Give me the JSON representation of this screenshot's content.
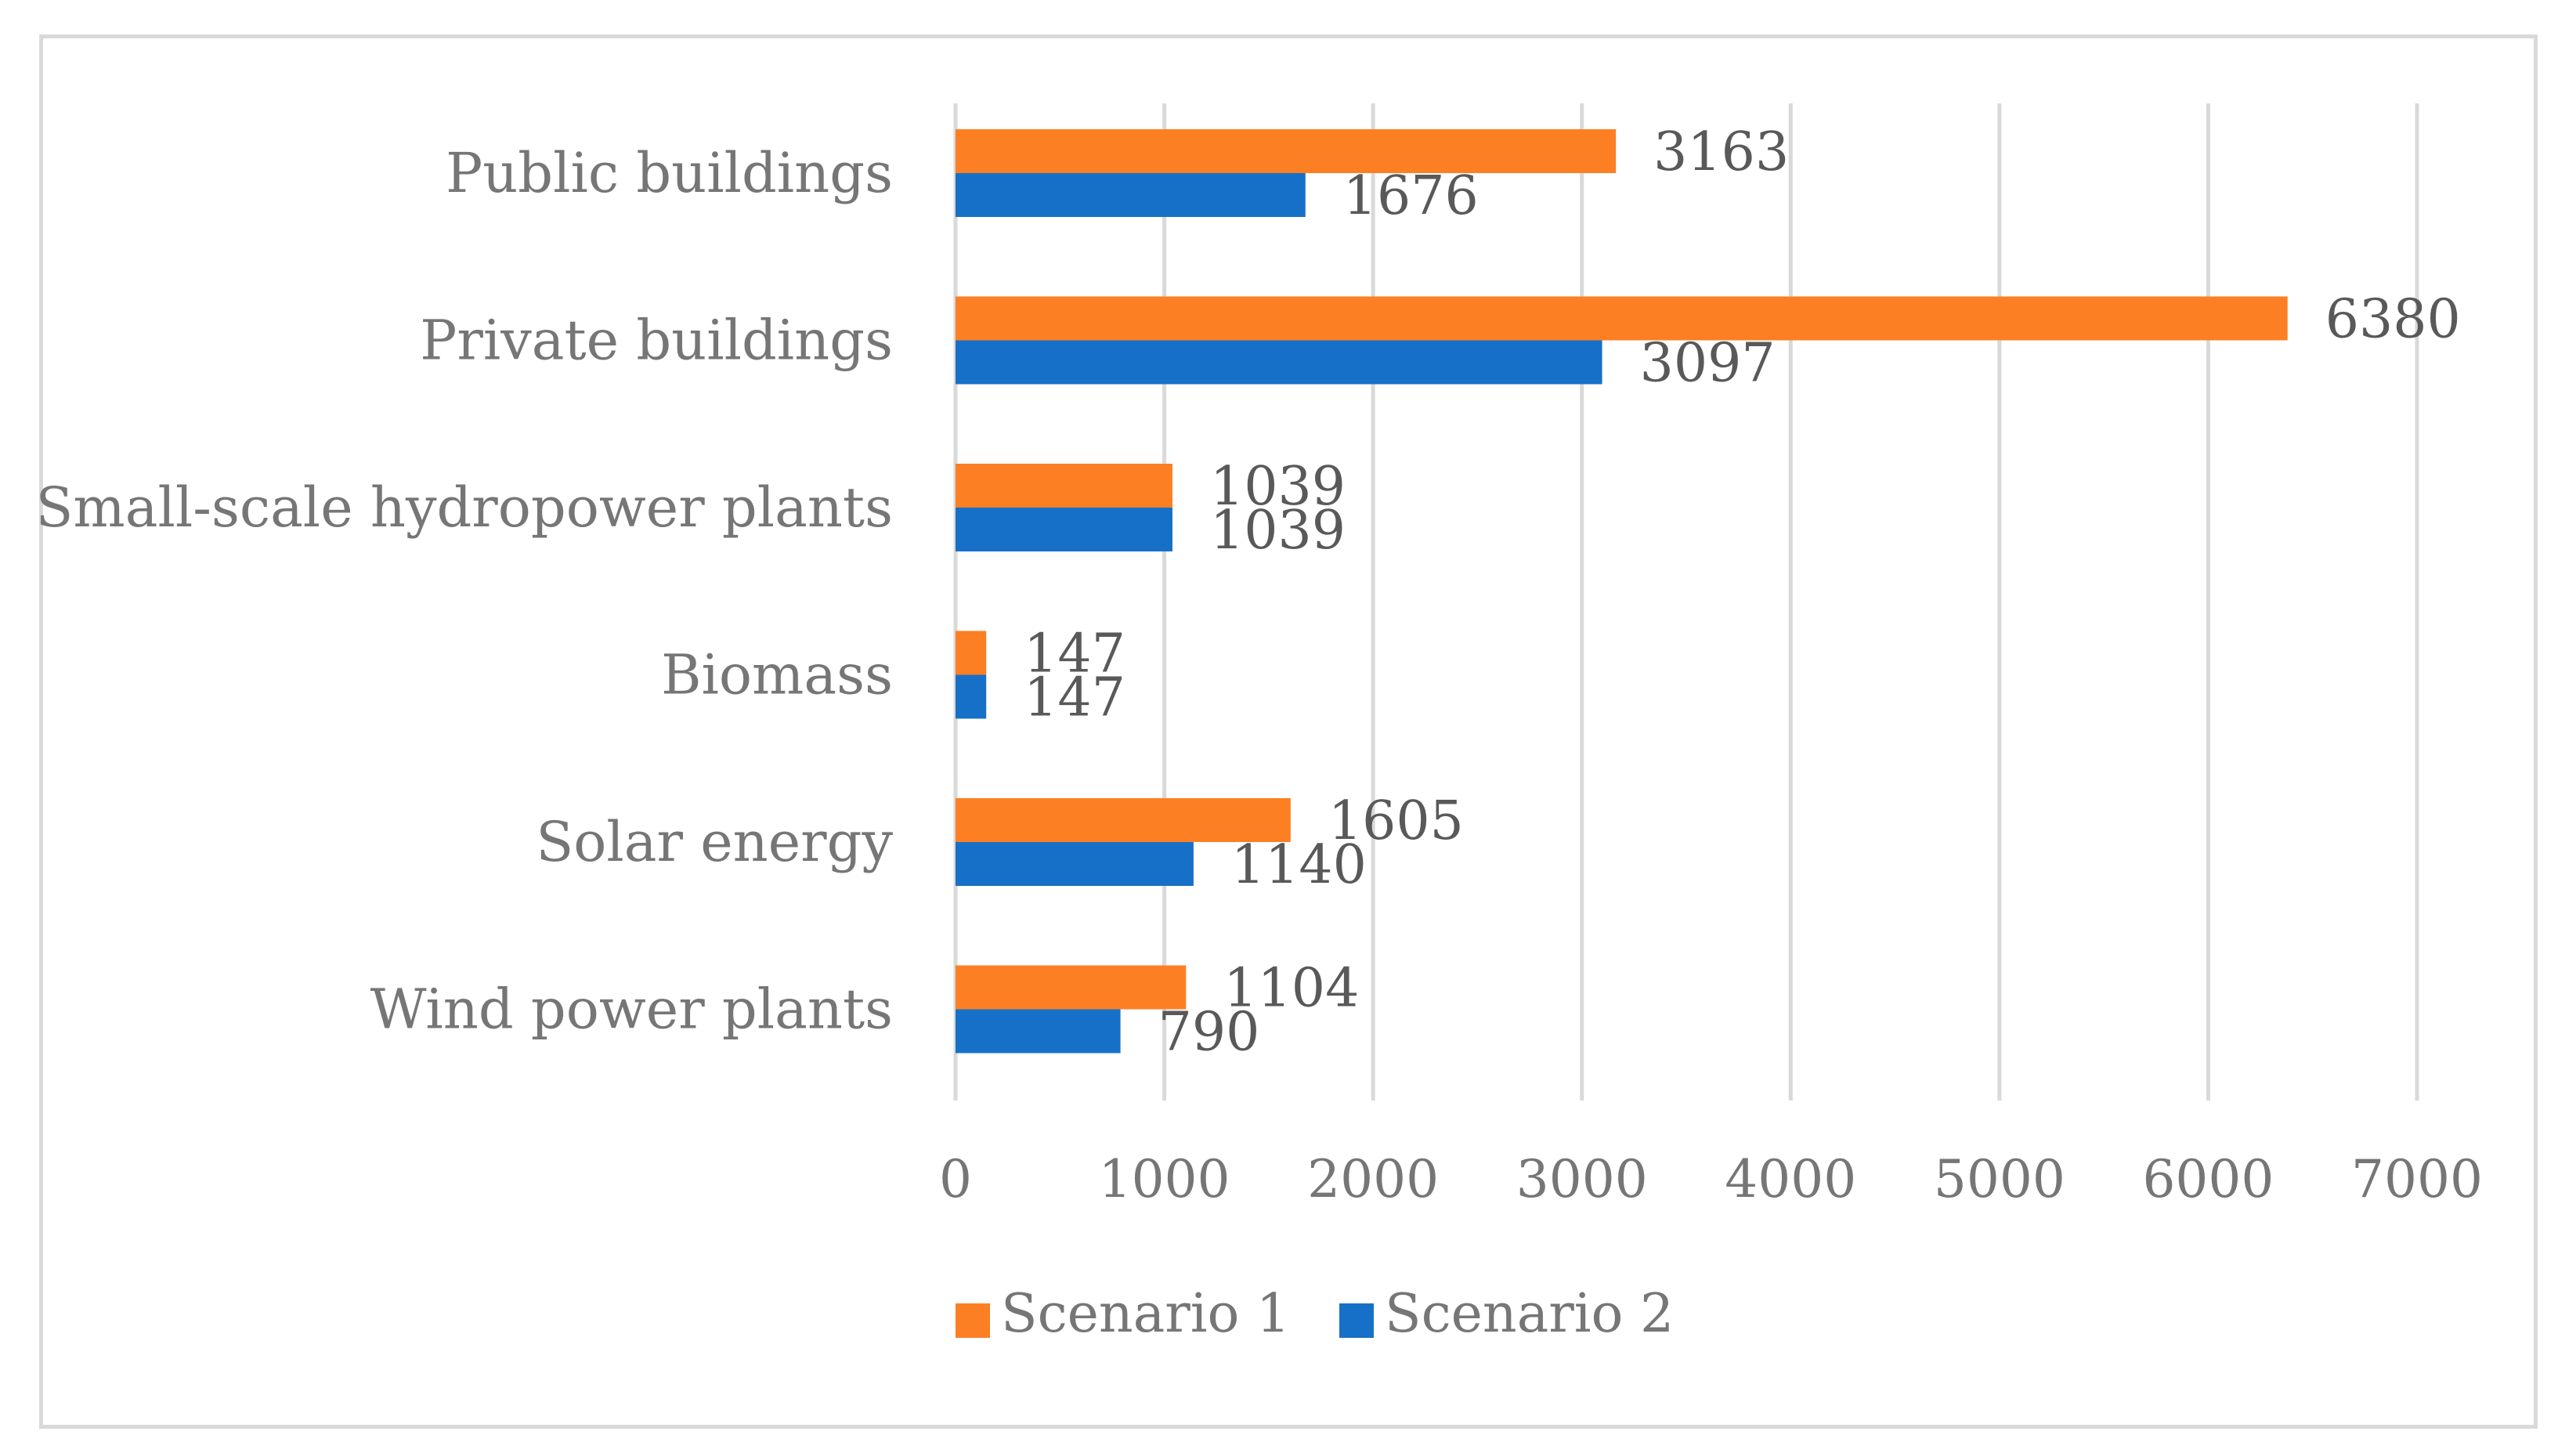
{
  "chart_data": {
    "type": "bar",
    "orientation": "horizontal",
    "title": "",
    "xlabel": "",
    "ylabel": "",
    "categories": [
      "Public buildings",
      "Private buildings",
      "Small-scale hydropower plants",
      "Biomass",
      "Solar energy",
      "Wind power plants"
    ],
    "series": [
      {
        "name": "Scenario 1",
        "color": "#fd7f23",
        "values": [
          3163,
          6380,
          1039,
          147,
          1605,
          1104
        ]
      },
      {
        "name": "Scenario 2",
        "color": "#1770c8",
        "values": [
          1676,
          3097,
          1039,
          147,
          1140,
          790
        ]
      }
    ],
    "xlim": [
      0,
      7000
    ],
    "xticks": [
      "0",
      "1000",
      "2000",
      "3000",
      "4000",
      "5000",
      "6000",
      "7000"
    ],
    "grid": "vertical",
    "legend": "bottom-center",
    "data_labels": true
  }
}
